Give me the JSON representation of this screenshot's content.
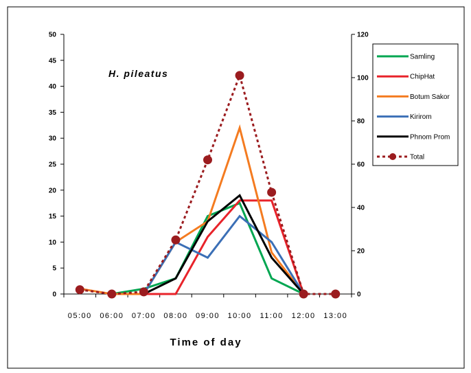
{
  "chart_data": {
    "type": "line",
    "title": "H. pileatus",
    "xlabel": "Time of day",
    "ylabel": "",
    "y2label": "",
    "categories": [
      "05:00",
      "06:00",
      "07:00",
      "08:00",
      "09:00",
      "10:00",
      "11:00",
      "12:00",
      "13:00"
    ],
    "ylim": [
      0,
      50
    ],
    "yticks": [
      0,
      5,
      10,
      15,
      20,
      25,
      30,
      35,
      40,
      45,
      50
    ],
    "y2lim": [
      0,
      120
    ],
    "y2ticks": [
      0,
      20,
      40,
      60,
      80,
      100,
      120
    ],
    "legend_position": "right",
    "series": [
      {
        "name": "Samling",
        "color": "#00a651",
        "axis": "left",
        "style": "solid",
        "values": [
          null,
          0,
          1,
          3,
          15,
          17.5,
          3,
          0,
          null
        ]
      },
      {
        "name": "ChipHat",
        "color": "#e8232a",
        "axis": "left",
        "style": "solid",
        "values": [
          null,
          null,
          0,
          0,
          11,
          18,
          18,
          0,
          null
        ]
      },
      {
        "name": "Botum Sakor",
        "color": "#f47b20",
        "axis": "left",
        "style": "solid",
        "values": [
          1,
          0,
          0,
          10,
          14,
          32,
          8,
          0,
          null
        ]
      },
      {
        "name": "Kirirom",
        "color": "#3b6fb6",
        "axis": "left",
        "style": "solid",
        "values": [
          null,
          null,
          0,
          10,
          7,
          15,
          10,
          0,
          null
        ]
      },
      {
        "name": "Phnom Prom",
        "color": "#000000",
        "axis": "left",
        "style": "solid",
        "values": [
          null,
          null,
          0,
          3,
          14,
          19,
          7,
          0,
          null
        ]
      },
      {
        "name": "Total",
        "color": "#9b1c1f",
        "axis": "right",
        "style": "dotted",
        "values": [
          2,
          0,
          1,
          25,
          62,
          101,
          47,
          0,
          0
        ]
      }
    ]
  }
}
